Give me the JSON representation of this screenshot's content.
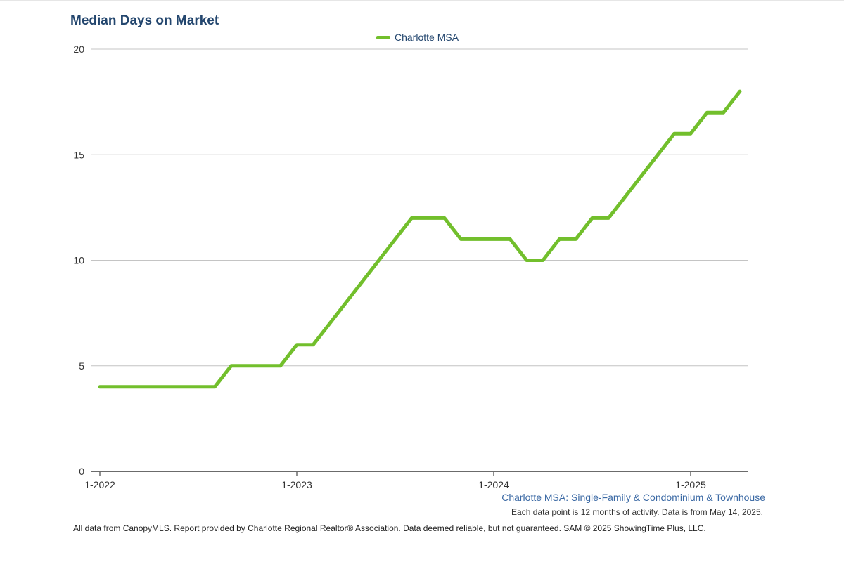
{
  "chart_data": {
    "type": "line",
    "title": "Median Days on Market",
    "legend": {
      "entries": [
        "Charlotte MSA"
      ],
      "placement": "top-center"
    },
    "x_tick_labels": [
      "1-2022",
      "1-2023",
      "1-2024",
      "1-2025"
    ],
    "y_ticks": [
      0,
      5,
      10,
      15,
      20
    ],
    "ylim": [
      0,
      20
    ],
    "grid": "horizontal",
    "x": [
      "1-2022",
      "2-2022",
      "3-2022",
      "4-2022",
      "5-2022",
      "6-2022",
      "7-2022",
      "8-2022",
      "9-2022",
      "10-2022",
      "11-2022",
      "12-2022",
      "1-2023",
      "2-2023",
      "3-2023",
      "4-2023",
      "5-2023",
      "6-2023",
      "7-2023",
      "8-2023",
      "9-2023",
      "10-2023",
      "11-2023",
      "12-2023",
      "1-2024",
      "2-2024",
      "3-2024",
      "4-2024",
      "5-2024",
      "6-2024",
      "7-2024",
      "8-2024",
      "9-2024",
      "10-2024",
      "11-2024",
      "12-2024",
      "1-2025",
      "2-2025",
      "3-2025",
      "4-2025"
    ],
    "series": [
      {
        "name": "Charlotte MSA",
        "color": "#72bf2c",
        "values": [
          4,
          4,
          4,
          4,
          4,
          4,
          4,
          4,
          5,
          5,
          5,
          5,
          6,
          6,
          7,
          8,
          9,
          10,
          11,
          12,
          12,
          12,
          11,
          11,
          11,
          11,
          10,
          10,
          11,
          11,
          12,
          12,
          13,
          14,
          15,
          16,
          16,
          17,
          17,
          18
        ]
      }
    ],
    "subtitle": "Charlotte MSA: Single-Family & Condominium & Townhouse",
    "note": "Each data point is 12 months of activity. Data is from May 14, 2025."
  },
  "footer": "All data from CanopyMLS. Report provided by Charlotte Regional Realtor® Association. Data deemed reliable, but not guaranteed. SAM © 2025 ShowingTime Plus, LLC."
}
